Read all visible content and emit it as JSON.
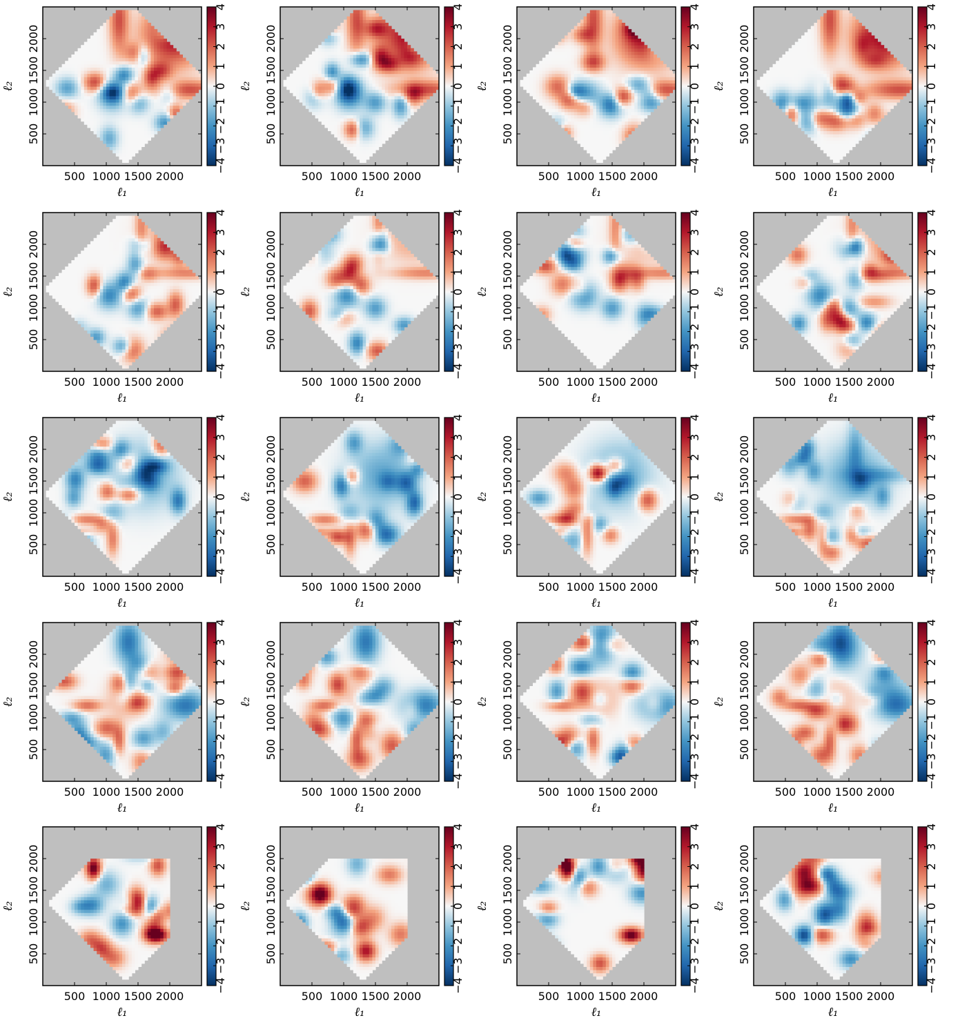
{
  "chart_data": {
    "type": "heatmap",
    "layout": {
      "rows": 5,
      "cols": 4
    },
    "xlabel": "ℓ₁",
    "ylabel": "ℓ₂",
    "x_ticks": [
      500,
      1000,
      1500,
      2000
    ],
    "y_ticks": [
      500,
      1000,
      1500,
      2000
    ],
    "xlim": [
      0,
      2500
    ],
    "ylim": [
      0,
      2500
    ],
    "colorbar": {
      "colormap": "RdBu_r",
      "ticks": [
        -4,
        -3,
        -2,
        -1,
        0,
        1,
        2,
        3,
        4
      ],
      "range": [
        -4,
        4
      ]
    },
    "mask_color": "#bfbfbf",
    "colors": {
      "low": "#053061",
      "mid": "#f7f7f7",
      "high": "#67001f"
    },
    "panels": [
      {
        "row": 1,
        "col": 1,
        "region": "diamond",
        "pattern": "positive upper-right quadrant (~2 to 4), mixed ±2 blobs elsewhere"
      },
      {
        "row": 1,
        "col": 2,
        "region": "diamond",
        "pattern": "positive upper-right quadrant (~2 to 4), mixed ±2 blobs elsewhere"
      },
      {
        "row": 1,
        "col": 3,
        "region": "diamond",
        "pattern": "positive upper-right quadrant (~2 to 4), mixed ±2 blobs elsewhere"
      },
      {
        "row": 1,
        "col": 4,
        "region": "diamond",
        "pattern": "positive upper-right quadrant with stripes (~2 to 4)"
      },
      {
        "row": 2,
        "col": 1,
        "region": "diamond",
        "pattern": "mild positive stripes (~1 to 2), negative blobs near center"
      },
      {
        "row": 2,
        "col": 2,
        "region": "diamond",
        "pattern": "mild positive stripes (~1 to 2), negative blobs near center"
      },
      {
        "row": 2,
        "col": 3,
        "region": "diamond",
        "pattern": "mild positive stripes (~1 to 2), negative blobs near center"
      },
      {
        "row": 2,
        "col": 4,
        "region": "diamond",
        "pattern": "positive stripes (~2 to 3), negative blobs near center"
      },
      {
        "row": 3,
        "col": 1,
        "region": "diamond",
        "pattern": "mostly negative (~-2), positive arcs lower-left"
      },
      {
        "row": 3,
        "col": 2,
        "region": "diamond",
        "pattern": "mostly negative (~-2 to -3), positive arcs lower-left"
      },
      {
        "row": 3,
        "col": 3,
        "region": "diamond",
        "pattern": "mostly negative (~-1 to -2), positive arcs lower-left"
      },
      {
        "row": 3,
        "col": 4,
        "region": "diamond",
        "pattern": "negative (~-2) cross pattern, positive arcs lower-left"
      },
      {
        "row": 4,
        "col": 1,
        "region": "diamond",
        "pattern": "negative upper/right bands (~-3), positive ring near center (~2)"
      },
      {
        "row": 4,
        "col": 2,
        "region": "diamond",
        "pattern": "negative bands (~-2), positive arcs (~2)"
      },
      {
        "row": 4,
        "col": 3,
        "region": "diamond",
        "pattern": "negative upper/right bands (~-3), positive ring near center (~2)"
      },
      {
        "row": 4,
        "col": 4,
        "region": "diamond",
        "pattern": "strong negative upper-right (~-3), positive arcs (~2)"
      },
      {
        "row": 5,
        "col": 1,
        "region": "pentagon",
        "pattern": "strong positive blobs at (~800,1800) and (~1800,800) (~4)"
      },
      {
        "row": 5,
        "col": 2,
        "region": "pentagon",
        "pattern": "positive blobs (~3), negative center (~-3)"
      },
      {
        "row": 5,
        "col": 3,
        "region": "pentagon",
        "pattern": "strong positive blobs at (~800,1800) and (~1800,800) (~4)"
      },
      {
        "row": 5,
        "col": 4,
        "region": "pentagon",
        "pattern": "positive blobs (~3), strong negative blob near (~800,800) (~-4)"
      }
    ]
  }
}
